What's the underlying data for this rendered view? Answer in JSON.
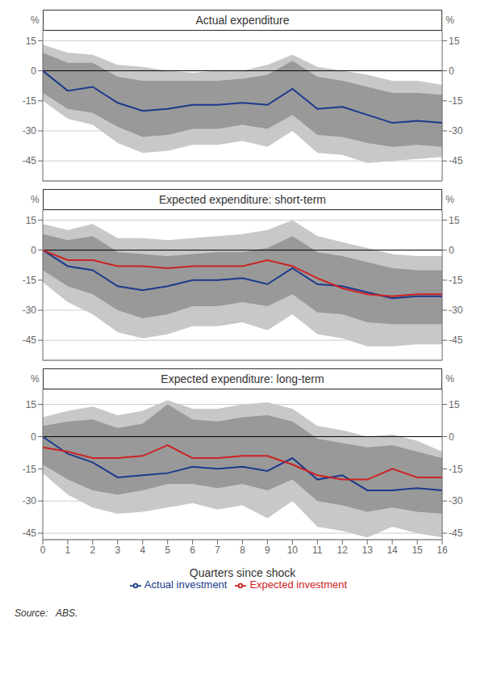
{
  "chart_data": [
    {
      "type": "line",
      "title": "Actual expenditure",
      "ylabel": "%",
      "x": [
        0,
        1,
        2,
        3,
        4,
        5,
        6,
        7,
        8,
        9,
        10,
        11,
        12,
        13,
        14,
        15,
        16
      ],
      "xlim": [
        0,
        16
      ],
      "xticks": [
        0,
        1,
        2,
        3,
        4,
        5,
        6,
        7,
        8,
        9,
        10,
        11,
        12,
        13,
        14,
        15,
        16
      ],
      "ylim": [
        -55,
        20
      ],
      "yticks": [
        15,
        0,
        -15,
        -30,
        -45
      ],
      "y2lim": [
        -55,
        20
      ],
      "y2ticks": [
        15,
        0,
        -15,
        -30,
        -45
      ],
      "grid": true,
      "tick_labels": "y",
      "bands": [
        {
          "color": "#C8C8C8",
          "lower": [
            -15,
            -24,
            -27,
            -36,
            -41,
            -40,
            -37,
            -37,
            -35,
            -38,
            -30,
            -41,
            -42,
            -46,
            -45,
            -44,
            -43
          ],
          "upper": [
            13,
            9,
            8,
            3,
            2,
            0,
            -1,
            0,
            0,
            3,
            8,
            2,
            0,
            -2,
            -5,
            -5,
            -7
          ]
        },
        {
          "color": "#999999",
          "lower": [
            -11,
            -19,
            -21,
            -28,
            -33,
            -32,
            -29,
            -29,
            -27,
            -29,
            -22,
            -32,
            -33,
            -36,
            -38,
            -37,
            -38
          ],
          "upper": [
            9,
            4,
            4,
            -3,
            -5,
            -5,
            -5,
            -5,
            -4,
            -2,
            5,
            -3,
            -5,
            -8,
            -11,
            -11,
            -12
          ]
        }
      ],
      "series": [
        {
          "name": "Actual investment",
          "color": "#1B3A8C",
          "values": [
            0,
            -10,
            -8,
            -16,
            -20,
            -19,
            -17,
            -17,
            -16,
            -17,
            -9,
            -19,
            -18,
            -22,
            -26,
            -25,
            -26
          ]
        }
      ]
    },
    {
      "type": "line",
      "title": "Expected expenditure: short-term",
      "ylabel": "%",
      "x": [
        0,
        1,
        2,
        3,
        4,
        5,
        6,
        7,
        8,
        9,
        10,
        11,
        12,
        13,
        14,
        15,
        16
      ],
      "xlim": [
        0,
        16
      ],
      "xticks": [
        0,
        1,
        2,
        3,
        4,
        5,
        6,
        7,
        8,
        9,
        10,
        11,
        12,
        13,
        14,
        15,
        16
      ],
      "ylim": [
        -55,
        20
      ],
      "yticks": [
        15,
        0,
        -15,
        -30,
        -45
      ],
      "y2lim": [
        -55,
        20
      ],
      "y2ticks": [
        15,
        0,
        -15,
        -30,
        -45
      ],
      "grid": true,
      "tick_labels": "y",
      "bands": [
        {
          "color": "#C8C8C8",
          "lower": [
            -16,
            -26,
            -32,
            -41,
            -44,
            -42,
            -38,
            -38,
            -36,
            -40,
            -32,
            -42,
            -44,
            -48,
            -48,
            -47,
            -47
          ],
          "upper": [
            13,
            10,
            13,
            6,
            6,
            5,
            6,
            7,
            8,
            10,
            15,
            7,
            4,
            1,
            -2,
            -3,
            -3
          ]
        },
        {
          "color": "#999999",
          "lower": [
            -10,
            -18,
            -22,
            -30,
            -34,
            -32,
            -28,
            -28,
            -26,
            -28,
            -22,
            -31,
            -32,
            -36,
            -37,
            -37,
            -37
          ],
          "upper": [
            8,
            5,
            7,
            -1,
            -2,
            -3,
            -2,
            -1,
            -1,
            1,
            7,
            -1,
            -3,
            -6,
            -9,
            -10,
            -10
          ]
        }
      ],
      "series": [
        {
          "name": "Actual investment",
          "color": "#1B3A8C",
          "values": [
            0,
            -8,
            -10,
            -18,
            -20,
            -18,
            -15,
            -15,
            -14,
            -17,
            -9,
            -17,
            -18,
            -21,
            -24,
            -23,
            -23
          ]
        },
        {
          "name": "Expected investment",
          "color": "#CC2222",
          "values": [
            0,
            -5,
            -5,
            -8,
            -8,
            -9,
            -8,
            -8,
            -8,
            -5,
            -8,
            -14,
            -19,
            -22,
            -23,
            -22,
            -22
          ]
        }
      ]
    },
    {
      "type": "line",
      "title": "Expected expenditure: long-term",
      "ylabel": "%",
      "xlabel": "Quarters since shock",
      "annotation": "Source:   ABS.",
      "x": [
        0,
        1,
        2,
        3,
        4,
        5,
        6,
        7,
        8,
        9,
        10,
        11,
        12,
        13,
        14,
        15,
        16
      ],
      "xlim": [
        0,
        16
      ],
      "xticks": [
        0,
        1,
        2,
        3,
        4,
        5,
        6,
        7,
        8,
        9,
        10,
        11,
        12,
        13,
        14,
        15,
        16
      ],
      "ylim": [
        -48,
        22
      ],
      "yticks": [
        15,
        0,
        -15,
        -30,
        -45
      ],
      "y2lim": [
        -48,
        22
      ],
      "y2ticks": [
        15,
        0,
        -15,
        -30,
        -45
      ],
      "grid": true,
      "legend": "bottom",
      "bands": [
        {
          "color": "#C8C8C8",
          "lower": [
            -17,
            -27,
            -33,
            -36,
            -35,
            -33,
            -31,
            -34,
            -32,
            -38,
            -30,
            -42,
            -44,
            -47,
            -42,
            -45,
            -47
          ],
          "upper": [
            9,
            12,
            14,
            10,
            12,
            17,
            13,
            13,
            15,
            16,
            13,
            5,
            3,
            0,
            1,
            -2,
            -7
          ]
        },
        {
          "color": "#999999",
          "lower": [
            -13,
            -20,
            -25,
            -27,
            -25,
            -22,
            -22,
            -24,
            -22,
            -25,
            -20,
            -30,
            -32,
            -35,
            -33,
            -35,
            -36
          ],
          "upper": [
            5,
            7,
            8,
            4,
            6,
            15,
            8,
            7,
            9,
            10,
            7,
            -1,
            -3,
            -5,
            -4,
            -7,
            -10
          ]
        }
      ],
      "series": [
        {
          "name": "Actual investment",
          "color": "#1B3A8C",
          "values": [
            0,
            -8,
            -12,
            -19,
            -18,
            -17,
            -14,
            -15,
            -14,
            -16,
            -10,
            -20,
            -18,
            -25,
            -25,
            -24,
            -25
          ]
        },
        {
          "name": "Expected investment",
          "color": "#CC2222",
          "values": [
            -5,
            -7,
            -10,
            -10,
            -9,
            -4,
            -10,
            -10,
            -9,
            -9,
            -13,
            -18,
            -20,
            -20,
            -15,
            -19,
            -19
          ]
        }
      ]
    }
  ]
}
